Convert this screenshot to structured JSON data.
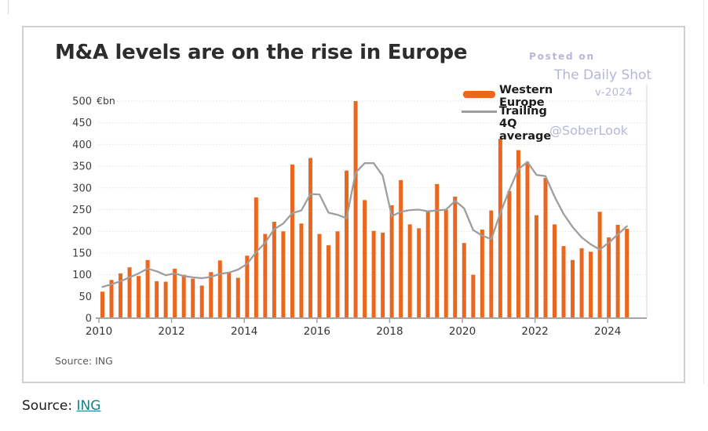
{
  "card": {
    "title": "M&A levels are on the rise in Europe",
    "watermark": {
      "posted_on": "Posted on",
      "daily_shot": "The Daily Shot",
      "date_fragment": "v-2024",
      "handle": "@SoberLook",
      "color": "#b6b7d8"
    },
    "legend": [
      {
        "label": "Western Europe",
        "type": "bar-swatch"
      },
      {
        "label": "Trailing 4Q average",
        "type": "line-swatch"
      }
    ],
    "chart_source": "Source: ING"
  },
  "page": {
    "source_label": "Source:",
    "source_link": "ING"
  },
  "colors": {
    "bar": "#ea671f",
    "line": "#9e9e9e",
    "grid": "#e3e3e3",
    "axis": "#a6a6a6",
    "axis_text": "#3d3d3d",
    "watermark": "#b6b7d8",
    "link": "#15808d"
  },
  "chart_data": {
    "type": "bar",
    "title": "M&A levels are on the rise in Europe",
    "unit": "€bn",
    "ylim": [
      0,
      500
    ],
    "y_ticks": [
      0,
      50,
      100,
      150,
      200,
      250,
      300,
      350,
      400,
      450,
      500
    ],
    "x_tick_labels": [
      "2010",
      "2012",
      "2014",
      "2016",
      "2018",
      "2020",
      "2022",
      "2024"
    ],
    "grid": "horizontal-faint",
    "legend_position": "top-right",
    "x_quarters": [
      "2010 Q1",
      "2010 Q2",
      "2010 Q3",
      "2010 Q4",
      "2011 Q1",
      "2011 Q2",
      "2011 Q3",
      "2011 Q4",
      "2012 Q1",
      "2012 Q2",
      "2012 Q3",
      "2012 Q4",
      "2013 Q1",
      "2013 Q2",
      "2013 Q3",
      "2013 Q4",
      "2014 Q1",
      "2014 Q2",
      "2014 Q3",
      "2014 Q4",
      "2015 Q1",
      "2015 Q2",
      "2015 Q3",
      "2015 Q4",
      "2016 Q1",
      "2016 Q2",
      "2016 Q3",
      "2016 Q4",
      "2017 Q1",
      "2017 Q2",
      "2017 Q3",
      "2017 Q4",
      "2018 Q1",
      "2018 Q2",
      "2018 Q3",
      "2018 Q4",
      "2019 Q1",
      "2019 Q2",
      "2019 Q3",
      "2019 Q4",
      "2020 Q1",
      "2020 Q2",
      "2020 Q3",
      "2020 Q4",
      "2021 Q1",
      "2021 Q2",
      "2021 Q3",
      "2021 Q4",
      "2022 Q1",
      "2022 Q2",
      "2022 Q3",
      "2022 Q4",
      "2023 Q1",
      "2023 Q2",
      "2023 Q3",
      "2023 Q4",
      "2024 Q1",
      "2024 Q2",
      "2024 Q3"
    ],
    "series": [
      {
        "name": "Western Europe",
        "type": "bar",
        "color": "#ea671f",
        "values": [
          61,
          88,
          103,
          117,
          97,
          134,
          85,
          84,
          114,
          100,
          91,
          75,
          106,
          133,
          106,
          93,
          144,
          278,
          194,
          222,
          200,
          354,
          218,
          369,
          194,
          168,
          200,
          340,
          500,
          272,
          201,
          197,
          260,
          318,
          216,
          207,
          246,
          309,
          250,
          280,
          173,
          100,
          204,
          248,
          413,
          293,
          387,
          360,
          237,
          323,
          216,
          166,
          134,
          161,
          153,
          245,
          186,
          215,
          206
        ]
      },
      {
        "name": "Trailing 4Q average",
        "type": "line",
        "color": "#9e9e9e",
        "values": [
          72,
          78,
          85,
          94,
          103,
          114,
          108,
          99,
          103,
          97,
          94,
          92,
          95,
          102,
          105,
          112,
          125,
          152,
          174,
          205,
          218,
          242,
          248,
          286,
          285,
          243,
          238,
          230,
          335,
          357,
          357,
          328,
          235,
          245,
          249,
          250,
          246,
          248,
          250,
          270,
          253,
          203,
          190,
          182,
          242,
          295,
          343,
          360,
          330,
          327,
          280,
          240,
          210,
          186,
          170,
          158,
          174,
          193,
          212
        ]
      }
    ]
  }
}
